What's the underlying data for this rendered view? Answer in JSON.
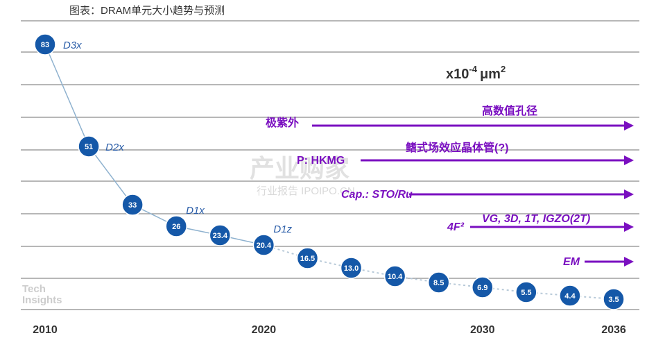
{
  "caption": "图表：DRAM单元大小趋势与预测",
  "chart_data": {
    "type": "line",
    "unit_label": "x10-4 μm2",
    "x_ticks": [
      "2010",
      "2020",
      "2030",
      "2036"
    ],
    "series": [
      {
        "style": "solid",
        "years": [
          2010,
          2012,
          2014,
          2016,
          2018,
          2020
        ],
        "values": [
          83,
          51,
          33,
          26,
          23.4,
          20.4
        ]
      },
      {
        "style": "dotted",
        "years": [
          2020,
          2022,
          2024,
          2026,
          2028,
          2030,
          2032,
          2034,
          2036
        ],
        "values": [
          20.4,
          16.5,
          13.0,
          10.4,
          8.5,
          6.9,
          5.5,
          4.4,
          3.5
        ]
      }
    ],
    "points": [
      {
        "year": 2010,
        "value": "83"
      },
      {
        "year": 2012,
        "value": "51"
      },
      {
        "year": 2014,
        "value": "33"
      },
      {
        "year": 2016,
        "value": "26"
      },
      {
        "year": 2018,
        "value": "23.4"
      },
      {
        "year": 2020,
        "value": "20.4"
      },
      {
        "year": 2022,
        "value": "16.5"
      },
      {
        "year": 2024,
        "value": "13.0"
      },
      {
        "year": 2026,
        "value": "10.4"
      },
      {
        "year": 2028,
        "value": "8.5"
      },
      {
        "year": 2030,
        "value": "6.9"
      },
      {
        "year": 2032,
        "value": "5.5"
      },
      {
        "year": 2034,
        "value": "4.4"
      },
      {
        "year": 2036,
        "value": "3.5"
      }
    ],
    "node_labels": [
      {
        "year": 2010,
        "text": "D3x"
      },
      {
        "year": 2012,
        "text": "D2x"
      },
      {
        "year": 2016,
        "text": "D1x"
      },
      {
        "year": 2020,
        "text": "D1z"
      }
    ],
    "technologies": [
      {
        "left": "极紫外",
        "right": "高数值孔径"
      },
      {
        "left": "P: HKMG",
        "right": "鳍式场效应晶体管(?)"
      },
      {
        "left": "Cap.: STO/Ru",
        "right": ""
      },
      {
        "left": "4F²",
        "right": "VG, 3D, 1T, IGZO(2T)"
      },
      {
        "left": "EM",
        "right": ""
      }
    ],
    "grid": true
  },
  "watermark": {
    "main": "产业购家",
    "sub": "行业报告 IPOIPO.CN"
  },
  "logo": [
    "Tech",
    "Insights"
  ]
}
